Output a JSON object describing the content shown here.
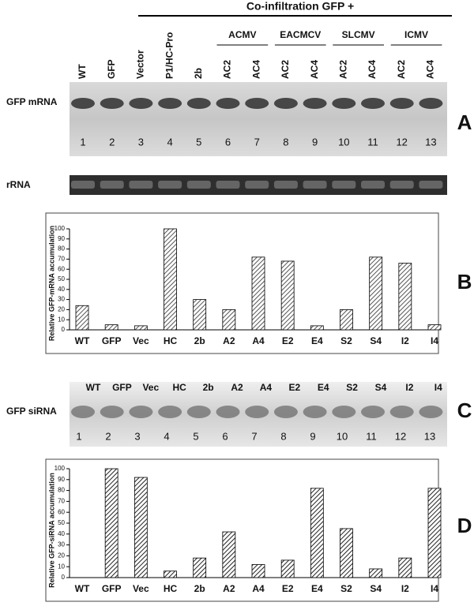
{
  "panel_a": {
    "header": "Co-infiltration GFP +",
    "groups": [
      "ACMV",
      "EACMCV",
      "SLCMV",
      "ICMV"
    ],
    "lanes": [
      "WT",
      "GFP",
      "Vector",
      "P1/HC-Pro",
      "2b",
      "AC2",
      "AC4",
      "AC2",
      "AC4",
      "AC2",
      "AC4",
      "AC2",
      "AC4"
    ],
    "row_label": "GFP mRNA",
    "lane_numbers": [
      1,
      2,
      3,
      4,
      5,
      6,
      7,
      8,
      9,
      10,
      11,
      12,
      13
    ],
    "loading_label": "rRNA",
    "panel_label": "A"
  },
  "panel_c": {
    "lanes": [
      "WT",
      "GFP",
      "Vec",
      "HC",
      "2b",
      "A2",
      "A4",
      "E2",
      "E4",
      "S2",
      "S4",
      "I2",
      "I4"
    ],
    "row_label": "GFP siRNA",
    "lane_numbers": [
      1,
      2,
      3,
      4,
      5,
      6,
      7,
      8,
      9,
      10,
      11,
      12,
      13
    ],
    "panel_label": "C"
  },
  "chart_data": [
    {
      "type": "bar",
      "panel_label": "B",
      "y_label": "Relative GFP-mRNA accumulation",
      "categories": [
        "WT",
        "GFP",
        "Vec",
        "HC",
        "2b",
        "A2",
        "A4",
        "E2",
        "E4",
        "S2",
        "S4",
        "I2",
        "I4"
      ],
      "values": [
        24,
        5,
        4,
        100,
        30,
        20,
        72,
        68,
        4,
        20,
        72,
        66,
        5
      ],
      "color": "#555555",
      "hatch": true,
      "ylim": [
        0,
        100
      ],
      "yticks": [
        0,
        10,
        20,
        30,
        40,
        50,
        60,
        70,
        80,
        90,
        100
      ]
    },
    {
      "type": "bar",
      "panel_label": "D",
      "y_label": "Relative GFP-siRNA accumulation",
      "categories": [
        "WT",
        "GFP",
        "Vec",
        "HC",
        "2b",
        "A2",
        "A4",
        "E2",
        "E4",
        "S2",
        "S4",
        "I2",
        "I4"
      ],
      "values": [
        0,
        100,
        92,
        6,
        18,
        42,
        12,
        16,
        82,
        45,
        8,
        18,
        82
      ],
      "color": "#222222",
      "hatch": true,
      "ylim": [
        0,
        100
      ],
      "yticks": [
        0,
        10,
        20,
        30,
        40,
        50,
        60,
        70,
        80,
        90,
        100
      ]
    }
  ]
}
